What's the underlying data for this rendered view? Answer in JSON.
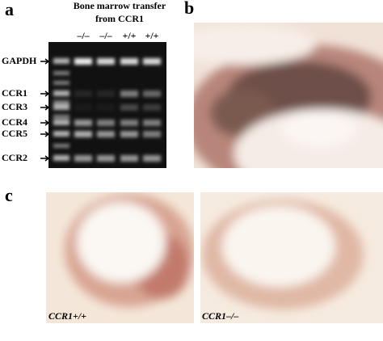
{
  "panels": {
    "a": {
      "label": "a",
      "title_lines": [
        "Bone marrow transfer",
        "from CCR1"
      ],
      "lanes": [
        "–/–",
        "–/–",
        "+/+",
        "+/+"
      ],
      "bands": [
        "GAPDH",
        "CCR1",
        "CCR3",
        "CCR4",
        "CCR5",
        "CCR2"
      ]
    },
    "b": {
      "label": "b"
    },
    "c": {
      "label": "c",
      "captions": [
        "CCR1+/+",
        "CCR1–/–"
      ]
    }
  }
}
